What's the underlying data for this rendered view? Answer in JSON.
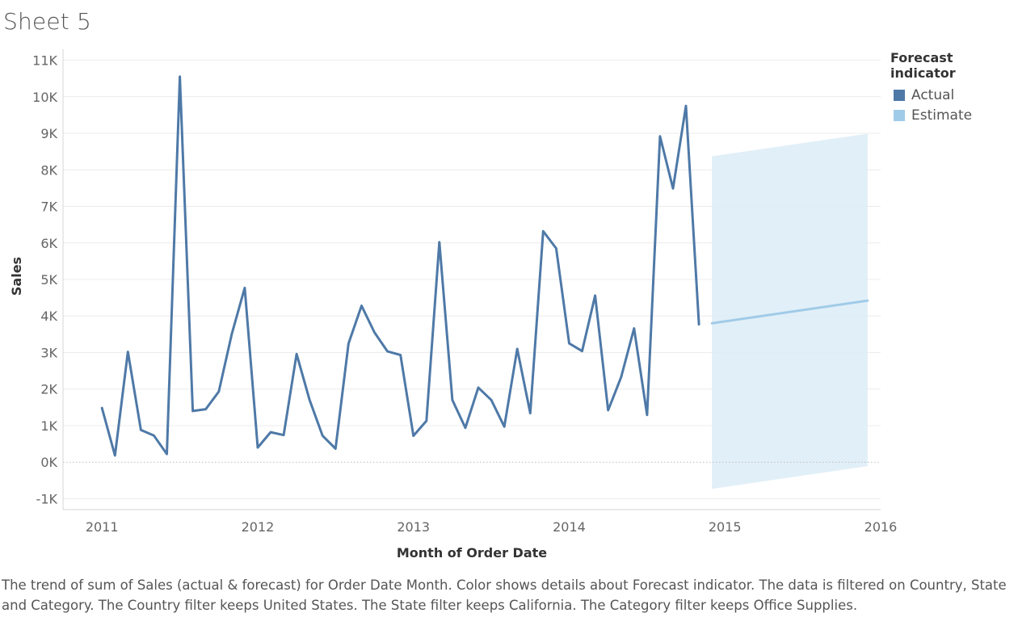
{
  "sheet": {
    "title": "Sheet 5"
  },
  "legend": {
    "title": "Forecast indicator",
    "items": [
      {
        "label": "Actual",
        "color": "#4e79a7"
      },
      {
        "label": "Estimate",
        "color": "#a0cbe8"
      }
    ]
  },
  "caption": "The trend of sum of Sales (actual & forecast)  for Order Date Month.  Color shows details about Forecast indicator. The data is filtered on Country, State and Category. The Country filter keeps United States. The State filter keeps California. The Category filter keeps Office Supplies.",
  "chart_data": {
    "type": "line",
    "title": "",
    "xlabel": "Month of Order Date",
    "ylabel": "Sales",
    "x_ticks": [
      "2011",
      "2012",
      "2013",
      "2014",
      "2015",
      "2016"
    ],
    "y_ticks": [
      "11K",
      "10K",
      "9K",
      "8K",
      "7K",
      "6K",
      "5K",
      "4K",
      "3K",
      "2K",
      "1K",
      "0K",
      "-1K"
    ],
    "ylim": [
      -1300,
      11300
    ],
    "xlim": [
      "2010-10",
      "2016-01"
    ],
    "grid": true,
    "legend_position": "top-right",
    "series": [
      {
        "name": "Actual",
        "color": "#4e79a7",
        "x": [
          "2011-01",
          "2011-02",
          "2011-03",
          "2011-04",
          "2011-05",
          "2011-06",
          "2011-07",
          "2011-08",
          "2011-09",
          "2011-10",
          "2011-11",
          "2011-12",
          "2012-01",
          "2012-02",
          "2012-03",
          "2012-04",
          "2012-05",
          "2012-06",
          "2012-07",
          "2012-08",
          "2012-09",
          "2012-10",
          "2012-11",
          "2012-12",
          "2013-01",
          "2013-02",
          "2013-03",
          "2013-04",
          "2013-05",
          "2013-06",
          "2013-07",
          "2013-08",
          "2013-09",
          "2013-10",
          "2013-11",
          "2013-12",
          "2014-01",
          "2014-02",
          "2014-03",
          "2014-04",
          "2014-05",
          "2014-06",
          "2014-07",
          "2014-08",
          "2014-09",
          "2014-10",
          "2014-11"
        ],
        "values": [
          1480,
          180,
          3020,
          880,
          730,
          220,
          10550,
          1400,
          1450,
          1930,
          3500,
          4770,
          400,
          820,
          740,
          2960,
          1700,
          720,
          370,
          3250,
          4280,
          3550,
          3030,
          2930,
          720,
          1130,
          6020,
          1700,
          940,
          2040,
          1700,
          970,
          3100,
          1340,
          6320,
          5850,
          3250,
          3040,
          4560,
          1420,
          2320,
          3660,
          1290,
          8920,
          7490,
          9750,
          3770
        ]
      },
      {
        "name": "Estimate",
        "color": "#a0cbe8",
        "x": [
          "2014-12",
          "2015-12"
        ],
        "values": [
          3800,
          4420
        ],
        "band_upper": [
          8370,
          8990
        ],
        "band_lower": [
          -730,
          -110
        ]
      }
    ]
  }
}
